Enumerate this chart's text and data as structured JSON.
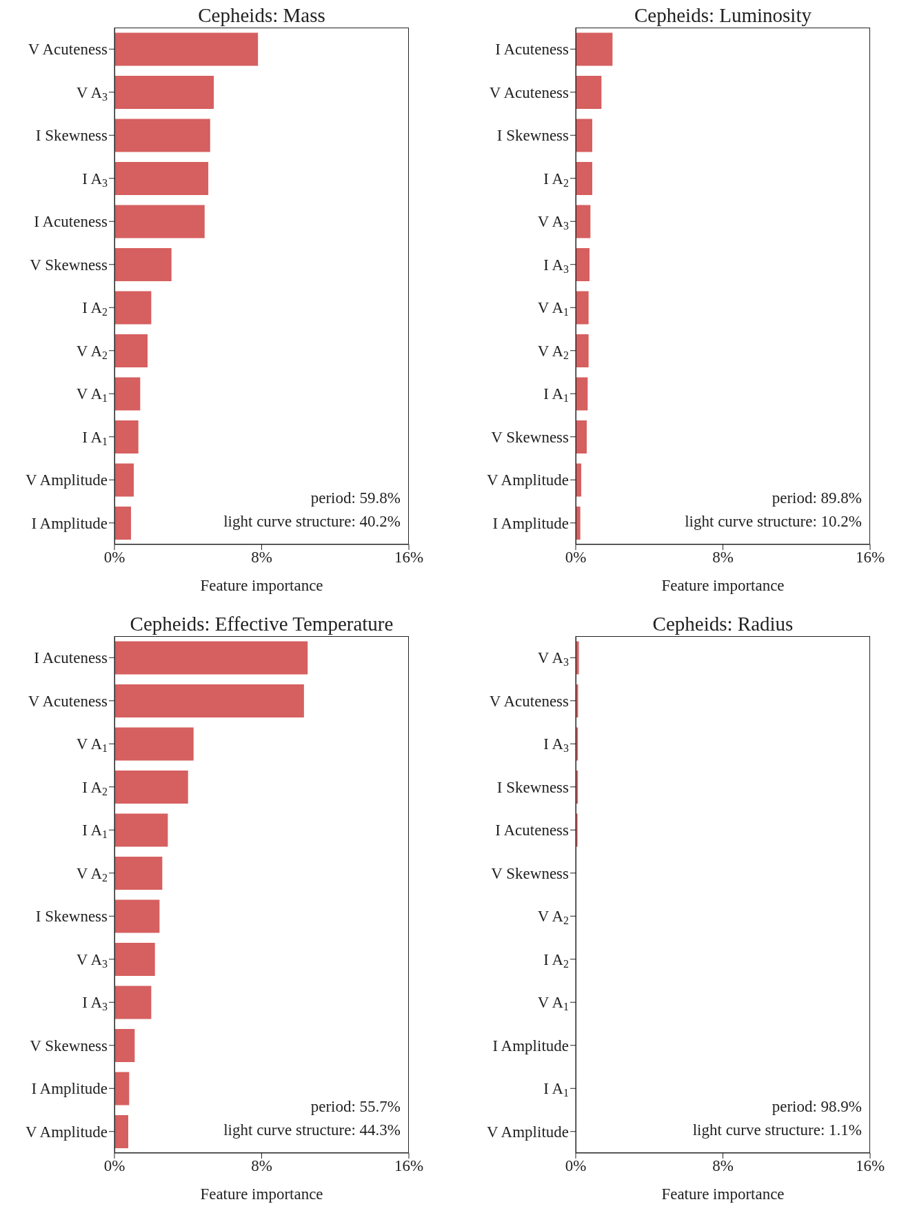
{
  "chart_data": [
    {
      "type": "bar",
      "orientation": "horizontal",
      "title": "Cepheids: Mass",
      "xlabel": "Feature importance",
      "categories": [
        "V Acuteness",
        "V A$_{3}$",
        "I Skewness",
        "I A$_{3}$",
        "I Acuteness",
        "V Skewness",
        "I A$_{2}$",
        "V A$_{2}$",
        "V A$_{1}$",
        "I A$_{1}$",
        "V Amplitude",
        "I Amplitude"
      ],
      "values": [
        7.8,
        5.4,
        5.2,
        5.1,
        4.9,
        3.1,
        2.0,
        1.8,
        1.4,
        1.3,
        1.05,
        0.9
      ],
      "color": "#d65f5f",
      "xlim": [
        0,
        16
      ],
      "xticks": [
        {
          "value": 0,
          "label": "0%"
        },
        {
          "value": 8,
          "label": "8%"
        },
        {
          "value": 16,
          "label": "16%"
        }
      ],
      "annotations": [
        "period: 59.8%",
        "light curve structure: 40.2%"
      ]
    },
    {
      "type": "bar",
      "orientation": "horizontal",
      "title": "Cepheids: Luminosity",
      "xlabel": "Feature importance",
      "categories": [
        "I Acuteness",
        "V Acuteness",
        "I Skewness",
        "I A$_{2}$",
        "V A$_{3}$",
        "I A$_{3}$",
        "V A$_{1}$",
        "V A$_{2}$",
        "I A$_{1}$",
        "V Skewness",
        "V Amplitude",
        "I Amplitude"
      ],
      "values": [
        2.0,
        1.4,
        0.9,
        0.9,
        0.8,
        0.75,
        0.7,
        0.7,
        0.65,
        0.6,
        0.3,
        0.25
      ],
      "color": "#d65f5f",
      "xlim": [
        0,
        16
      ],
      "xticks": [
        {
          "value": 0,
          "label": "0%"
        },
        {
          "value": 8,
          "label": "8%"
        },
        {
          "value": 16,
          "label": "16%"
        }
      ],
      "annotations": [
        "period: 89.8%",
        "light curve structure: 10.2%"
      ]
    },
    {
      "type": "bar",
      "orientation": "horizontal",
      "title": "Cepheids: Effective Temperature",
      "xlabel": "Feature importance",
      "categories": [
        "I Acuteness",
        "V Acuteness",
        "V A$_{1}$",
        "I A$_{2}$",
        "I A$_{1}$",
        "V A$_{2}$",
        "I Skewness",
        "V A$_{3}$",
        "I A$_{3}$",
        "V Skewness",
        "I Amplitude",
        "V Amplitude"
      ],
      "values": [
        10.5,
        10.3,
        4.3,
        4.0,
        2.9,
        2.6,
        2.45,
        2.2,
        2.0,
        1.1,
        0.8,
        0.75
      ],
      "color": "#d65f5f",
      "xlim": [
        0,
        16
      ],
      "xticks": [
        {
          "value": 0,
          "label": "0%"
        },
        {
          "value": 8,
          "label": "8%"
        },
        {
          "value": 16,
          "label": "16%"
        }
      ],
      "annotations": [
        "period: 55.7%",
        "light curve structure: 44.3%"
      ]
    },
    {
      "type": "bar",
      "orientation": "horizontal",
      "title": "Cepheids: Radius",
      "xlabel": "Feature importance",
      "categories": [
        "V A$_{3}$",
        "V Acuteness",
        "I A$_{3}$",
        "I Skewness",
        "I Acuteness",
        "V Skewness",
        "V A$_{2}$",
        "I A$_{2}$",
        "V A$_{1}$",
        "I Amplitude",
        "I A$_{1}$",
        "V Amplitude"
      ],
      "values": [
        0.17,
        0.13,
        0.12,
        0.12,
        0.1,
        null,
        null,
        null,
        null,
        null,
        null,
        null
      ],
      "color": "#d65f5f",
      "xlim": [
        0,
        16
      ],
      "xticks": [
        {
          "value": 0,
          "label": "0%"
        },
        {
          "value": 8,
          "label": "8%"
        },
        {
          "value": 16,
          "label": "16%"
        }
      ],
      "annotations": [
        "period: 98.9%",
        "light curve structure: 1.1%"
      ]
    }
  ]
}
